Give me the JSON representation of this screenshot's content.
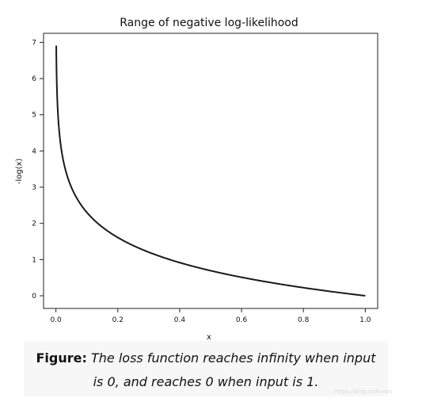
{
  "chart_data": {
    "type": "line",
    "title": "Range of negative log-likelihood",
    "xlabel": "x",
    "ylabel": "-log(x)",
    "xlim": [
      -0.04,
      1.04
    ],
    "ylim": [
      -0.35,
      7.25
    ],
    "xticks": [
      0.0,
      0.2,
      0.4,
      0.6,
      0.8,
      1.0
    ],
    "xtick_labels": [
      "0.0",
      "0.2",
      "0.4",
      "0.6",
      "0.8",
      "1.0"
    ],
    "yticks": [
      0,
      1,
      2,
      3,
      4,
      5,
      6,
      7
    ],
    "ytick_labels": [
      "0",
      "1",
      "2",
      "3",
      "4",
      "5",
      "6",
      "7"
    ],
    "grid": false,
    "series": [
      {
        "function": "-log(x)",
        "x_range": [
          0.001,
          1.0
        ],
        "color": "#1a1a1a",
        "points": [
          [
            0.001,
            6.91
          ],
          [
            0.002,
            6.21
          ],
          [
            0.005,
            5.3
          ],
          [
            0.01,
            4.61
          ],
          [
            0.02,
            3.91
          ],
          [
            0.05,
            3.0
          ],
          [
            0.1,
            2.3
          ],
          [
            0.2,
            1.61
          ],
          [
            0.3,
            1.2
          ],
          [
            0.4,
            0.92
          ],
          [
            0.5,
            0.69
          ],
          [
            0.6,
            0.51
          ],
          [
            0.7,
            0.36
          ],
          [
            0.8,
            0.22
          ],
          [
            0.9,
            0.11
          ],
          [
            1.0,
            0.0
          ]
        ]
      }
    ]
  },
  "caption": {
    "label": "Figure:",
    "line1": "The loss function reaches infinity when input",
    "line2": "is 0, and reaches 0 when input is 1."
  },
  "watermark": "https://blog.csdn.net"
}
